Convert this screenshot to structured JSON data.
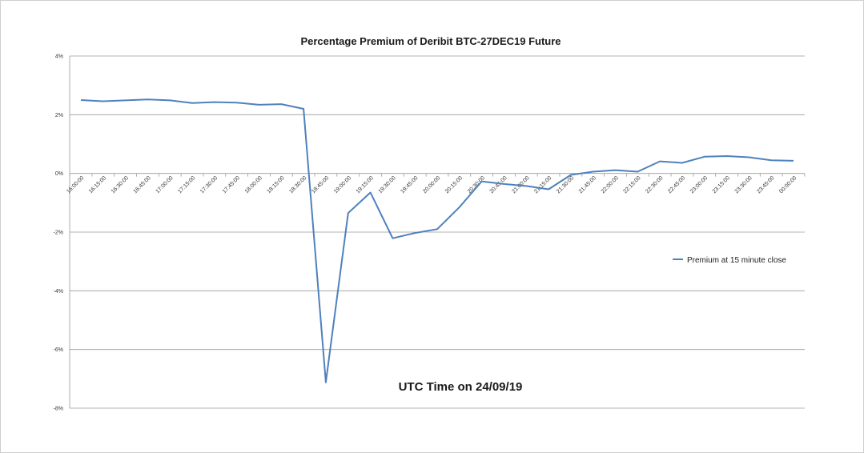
{
  "chart_data": {
    "type": "line",
    "title": "Percentage Premium of Deribit BTC-27DEC19 Future",
    "xlabel": "UTC Time on 24/09/19",
    "ylabel": "",
    "ylim": [
      -8,
      4
    ],
    "yticks": [
      4,
      2,
      0,
      -2,
      -4,
      -6,
      -8
    ],
    "ytick_labels": [
      "4%",
      "2%",
      "0%",
      "-2%",
      "-4%",
      "-6%",
      "-8%"
    ],
    "grid": true,
    "legend_position": "right",
    "categories": [
      "16:00:00",
      "16:15:00",
      "16:30:00",
      "16:45:00",
      "17:00:00",
      "17:15:00",
      "17:30:00",
      "17:45:00",
      "18:00:00",
      "18:15:00",
      "18:30:00",
      "18:45:00",
      "19:00:00",
      "19:15:00",
      "19:30:00",
      "19:45:00",
      "20:00:00",
      "20:15:00",
      "20:30:00",
      "20:45:00",
      "21:00:00",
      "21:15:00",
      "21:30:00",
      "21:45:00",
      "22:00:00",
      "22:15:00",
      "22:30:00",
      "22:45:00",
      "23:00:00",
      "23:15:00",
      "23:30:00",
      "23:45:00",
      "00:00:00"
    ],
    "series": [
      {
        "name": "Premium at 15 minute close",
        "color": "#4f81bd",
        "values": [
          2.5,
          2.46,
          2.49,
          2.52,
          2.49,
          2.4,
          2.43,
          2.41,
          2.34,
          2.36,
          2.2,
          -7.12,
          -1.35,
          -0.65,
          -2.21,
          -2.03,
          -1.9,
          -1.15,
          -0.27,
          -0.36,
          -0.43,
          -0.54,
          -0.05,
          0.06,
          0.11,
          0.06,
          0.41,
          0.36,
          0.57,
          0.59,
          0.55,
          0.45,
          0.43
        ]
      }
    ]
  }
}
